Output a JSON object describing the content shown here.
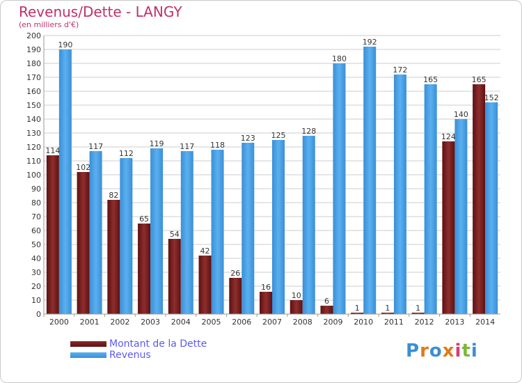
{
  "title": "Revenus/Dette - LANGY",
  "subtitle": "(en milliers d'€)",
  "logo": "Proxiti",
  "colors": {
    "title": "#c0306a",
    "dette": "#8b2a2a",
    "revenus": "#4da6e8",
    "legend_text": "#5a5af0",
    "grid": "#cccccc"
  },
  "chart_data": {
    "type": "bar",
    "title": "Revenus/Dette - LANGY",
    "subtitle": "(en milliers d'€)",
    "categories": [
      "2000",
      "2001",
      "2002",
      "2003",
      "2004",
      "2005",
      "2006",
      "2007",
      "2008",
      "2009",
      "2010",
      "2011",
      "2012",
      "2013",
      "2014"
    ],
    "series": [
      {
        "name": "Montant de la Dette",
        "values": [
          114,
          102,
          82,
          65,
          54,
          42,
          26,
          16,
          10,
          6,
          1,
          1,
          1,
          124,
          165
        ]
      },
      {
        "name": "Revenus",
        "values": [
          190,
          117,
          112,
          119,
          117,
          118,
          123,
          125,
          128,
          180,
          192,
          172,
          165,
          140,
          152
        ]
      }
    ],
    "ylim": [
      0,
      200
    ],
    "yticks": [
      0,
      10,
      20,
      30,
      40,
      50,
      60,
      70,
      80,
      90,
      100,
      110,
      120,
      130,
      140,
      150,
      160,
      170,
      180,
      190,
      200
    ],
    "grid": true,
    "legend": "bottom-left"
  },
  "legend": {
    "items": [
      {
        "label": "Montant de la Dette",
        "color": "#8b2a2a"
      },
      {
        "label": "Revenus",
        "color": "#4da6e8"
      }
    ]
  }
}
